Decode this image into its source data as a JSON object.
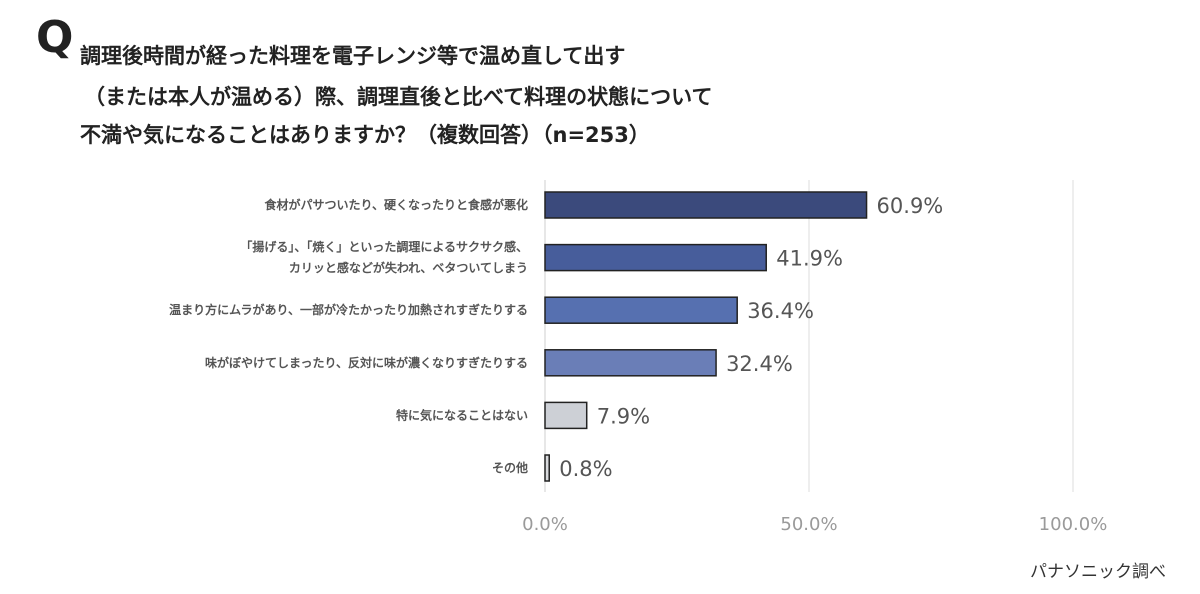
{
  "question": {
    "mark": "Q",
    "lines": [
      "調理後時間が経った料理を電子レンジ等で温め直して出す",
      "（または本人が温める）際、調理直後と比べて料理の状態について",
      "不満や気になることはありますか？（複数回答）（n=253）"
    ]
  },
  "chart_data": {
    "type": "bar",
    "orientation": "horizontal",
    "categories": [
      [
        "食材がパサついたり、硬くなったりと食感が悪化"
      ],
      [
        "「揚げる」、「焼く」といった調理によるサクサク感、",
        "カリッと感などが失われ、ベタついてしまう"
      ],
      [
        "温まり方にムラがあり、一部が冷たかったり加熱されすぎたりする"
      ],
      [
        "味がぼやけてしまったり、反対に味が濃くなりすぎたりする"
      ],
      [
        "特に気になることはない"
      ],
      [
        "その他"
      ]
    ],
    "values": [
      60.9,
      41.9,
      36.4,
      32.4,
      7.9,
      0.8
    ],
    "value_labels": [
      "60.9%",
      "41.9%",
      "36.4%",
      "32.4%",
      "7.9%",
      "0.8%"
    ],
    "bar_colors": [
      "#3b4a7c",
      "#475d9b",
      "#5670b0",
      "#6a7eb7",
      "#cdd0d6",
      "#d8dadd"
    ],
    "xlim": [
      0,
      100
    ],
    "ticks": [
      0,
      50,
      100
    ],
    "tick_labels": [
      "0.0%",
      "50.0%",
      "100.0%"
    ],
    "grid": true,
    "legend": "none"
  },
  "source": "パナソニック調べ"
}
